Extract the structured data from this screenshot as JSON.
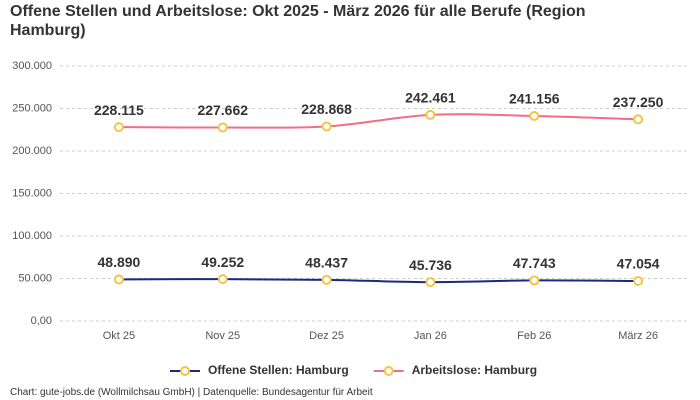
{
  "chart_data": {
    "type": "line",
    "title": "Offene Stellen und Arbeitslose: Okt 2025 - März 2026 für alle Berufe (Region Hamburg)",
    "categories": [
      "Okt 25",
      "Nov 25",
      "Dez 25",
      "Jan 26",
      "Feb 26",
      "März 26"
    ],
    "series": [
      {
        "name": "Offene Stellen: Hamburg",
        "color": "#1b2a7c",
        "values": [
          48890,
          49252,
          48437,
          45736,
          47743,
          47054
        ],
        "value_labels": [
          "48.890",
          "49.252",
          "48.437",
          "45.736",
          "47.743",
          "47.054"
        ]
      },
      {
        "name": "Arbeitslose: Hamburg",
        "color": "#f26d85",
        "values": [
          228115,
          227662,
          228868,
          242461,
          241156,
          237250
        ],
        "value_labels": [
          "228.115",
          "227.662",
          "228.868",
          "242.461",
          "241.156",
          "237.250"
        ]
      }
    ],
    "marker_color": "#f5c542",
    "ylim": [
      0,
      300000
    ],
    "yticks": [
      {
        "value": 0,
        "label": "0,00"
      },
      {
        "value": 50000,
        "label": "50.000"
      },
      {
        "value": 100000,
        "label": "100.000"
      },
      {
        "value": 150000,
        "label": "150.000"
      },
      {
        "value": 200000,
        "label": "200.000"
      },
      {
        "value": 250000,
        "label": "250.000"
      },
      {
        "value": 300000,
        "label": "300.000"
      }
    ],
    "grid": true,
    "legend": "bottom",
    "source": "Chart: gute-jobs.de (Wollmilchsau GmbH) | Datenquelle: Bundesagentur für Arbeit"
  }
}
